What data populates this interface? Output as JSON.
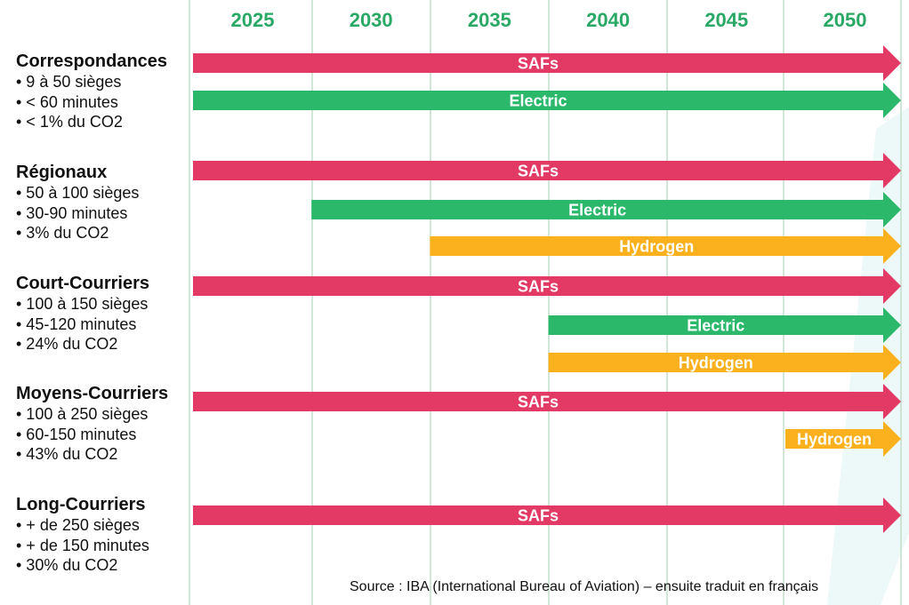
{
  "chart_data": {
    "type": "timeline",
    "x_ticks": [
      2025,
      2030,
      2035,
      2040,
      2045,
      2050
    ],
    "x_range": [
      2025,
      2054
    ],
    "colors": {
      "SAFs": "#e23a64",
      "Electric": "#2bb86a",
      "Hydrogen": "#fbb11e",
      "year_text": "#2aa866",
      "grid": "#c4ddcb"
    },
    "groups": [
      {
        "title": "Correspondances",
        "lines": [
          "• 9 à 50 sièges",
          "• < 60 minutes",
          "• < 1% du CO2"
        ],
        "bars": [
          {
            "label": "SAFs",
            "start": 2025,
            "end": 2054
          },
          {
            "label": "Electric",
            "start": 2025,
            "end": 2054
          }
        ]
      },
      {
        "title": "Régionaux",
        "lines": [
          "• 50 à 100 sièges",
          "• 30-90 minutes",
          "• 3% du CO2"
        ],
        "bars": [
          {
            "label": "SAFs",
            "start": 2025,
            "end": 2054
          },
          {
            "label": "Electric",
            "start": 2030,
            "end": 2054
          },
          {
            "label": "Hydrogen",
            "start": 2035,
            "end": 2054
          }
        ]
      },
      {
        "title": "Court-Courriers",
        "lines": [
          "• 100 à 150 sièges",
          "• 45-120 minutes",
          "• 24% du CO2"
        ],
        "bars": [
          {
            "label": "SAFs",
            "start": 2025,
            "end": 2054
          },
          {
            "label": "Electric",
            "start": 2040,
            "end": 2054
          },
          {
            "label": "Hydrogen",
            "start": 2040,
            "end": 2054
          }
        ]
      },
      {
        "title": "Moyens-Courriers",
        "lines": [
          "• 100 à 250 sièges",
          "• 60-150 minutes",
          "• 43% du CO2"
        ],
        "bars": [
          {
            "label": "SAFs",
            "start": 2025,
            "end": 2054
          },
          {
            "label": "Hydrogen",
            "start": 2050,
            "end": 2054
          }
        ]
      },
      {
        "title": "Long-Courriers",
        "lines": [
          "• + de 250 sièges",
          "• + de 150 minutes",
          "• 30% du CO2"
        ],
        "bars": [
          {
            "label": "SAFs",
            "start": 2025,
            "end": 2054
          }
        ]
      }
    ]
  },
  "source": "Source : IBA (International Bureau of Aviation) – ensuite traduit en français"
}
